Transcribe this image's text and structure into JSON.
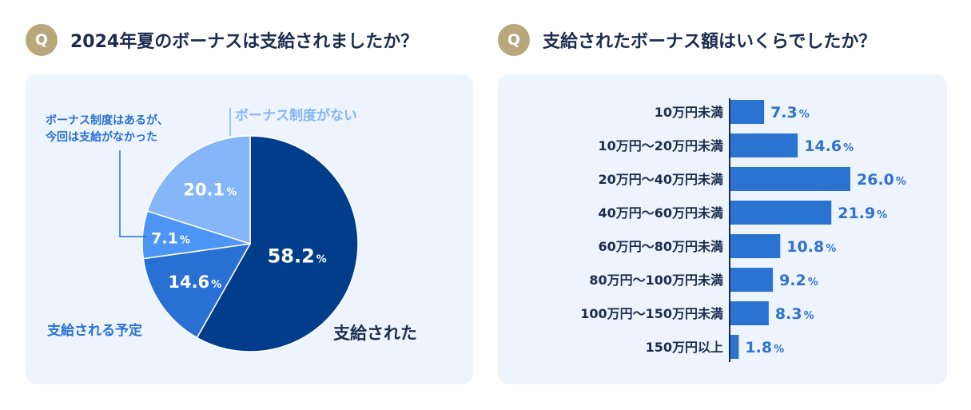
{
  "chart_data": [
    {
      "type": "pie",
      "title": "2024年夏のボーナスは支給されましたか？",
      "badge": "Q",
      "unit": "%",
      "slices": [
        {
          "label": "支給された",
          "value": 58.2,
          "value_text": "58.2",
          "color": "#013d8a"
        },
        {
          "label": "支給される予定",
          "value": 14.6,
          "value_text": "14.6",
          "color": "#2870d3"
        },
        {
          "label_lines": [
            "ボーナス制度はあるが、",
            "今回は支給がなかった"
          ],
          "value": 7.1,
          "value_text": "7.1",
          "color": "#4c95f5"
        },
        {
          "label": "ボーナス制度がない",
          "value": 20.1,
          "value_text": "20.1",
          "color": "#84b6f8"
        }
      ]
    },
    {
      "type": "bar",
      "orientation": "horizontal",
      "title": "支給されたボーナス額はいくらでしたか？",
      "badge": "Q",
      "unit": "%",
      "bar_color": "#2a73d0",
      "categories": [
        "10万円未満",
        "10万円〜20万円未満",
        "20万円〜40万円未満",
        "40万円〜60万円未満",
        "60万円〜80万円未満",
        "80万円〜100万円未満",
        "100万円〜150万円未満",
        "150万円以上"
      ],
      "values": [
        7.3,
        14.6,
        26.0,
        21.9,
        10.8,
        9.2,
        8.3,
        1.8
      ],
      "value_texts": [
        "7.3",
        "14.6",
        "26.0",
        "21.9",
        "10.8",
        "9.2",
        "8.3",
        "1.8"
      ]
    }
  ]
}
